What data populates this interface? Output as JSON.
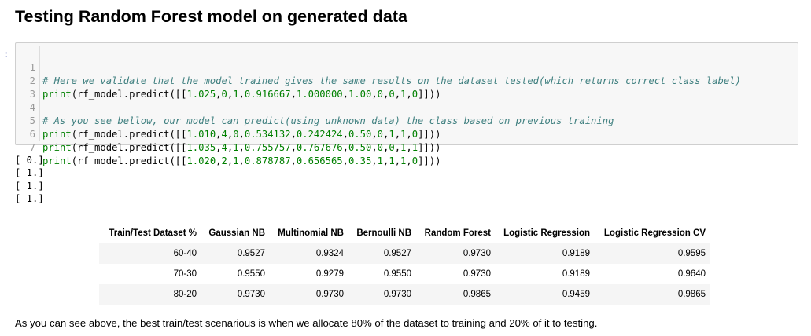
{
  "heading": "Testing Random Forest model on generated data",
  "prompt": ":",
  "code_cell": {
    "lines": [
      {
        "no": "1",
        "text": "# Here we validate that the model trained gives the same results on the dataset tested(which returns correct class label)",
        "kind": "comment"
      },
      {
        "no": "2",
        "text": "print(rf_model.predict([[1.025,0,1,0.916667,1.000000,1.00,0,0,1,0]]))",
        "kind": "code"
      },
      {
        "no": "3",
        "text": "",
        "kind": "code"
      },
      {
        "no": "4",
        "text": "# As you see bellow, our model can predict(using unknown data) the class based on previous training",
        "kind": "comment"
      },
      {
        "no": "5",
        "text": "print(rf_model.predict([[1.010,4,0,0.534132,0.242424,0.50,0,1,1,0]]))",
        "kind": "code"
      },
      {
        "no": "6",
        "text": "print(rf_model.predict([[1.035,4,1,0.755757,0.767676,0.50,0,0,1,1]]))",
        "kind": "code"
      },
      {
        "no": "7",
        "text": "print(rf_model.predict([[1.020,2,1,0.878787,0.656565,0.35,1,1,1,0]]))",
        "kind": "code"
      }
    ]
  },
  "output": {
    "lines": [
      "[ 0.]",
      "[ 1.]",
      "[ 1.]",
      "[ 1.]"
    ]
  },
  "results_table": {
    "headers": [
      "Train/Test Dataset %",
      "Gaussian NB",
      "Multinomial NB",
      "Bernoulli NB",
      "Random Forest",
      "Logistic Regression",
      "Logistic Regression CV"
    ],
    "rows": [
      [
        "60-40",
        "0.9527",
        "0.9324",
        "0.9527",
        "0.9730",
        "0.9189",
        "0.9595"
      ],
      [
        "70-30",
        "0.9550",
        "0.9279",
        "0.9550",
        "0.9730",
        "0.9189",
        "0.9640"
      ],
      [
        "80-20",
        "0.9730",
        "0.9730",
        "0.9730",
        "0.9865",
        "0.9459",
        "0.9865"
      ]
    ]
  },
  "conclusion": "As you can see above, the best train/test scenarious is when we allocate 80% of the dataset to training and 20% of it to testing.",
  "colors": {
    "code_background": "#f7f7f7",
    "comment": "#408080",
    "builtin": "#008000",
    "line_number": "#999999",
    "table_stripe": "#f5f5f5"
  }
}
